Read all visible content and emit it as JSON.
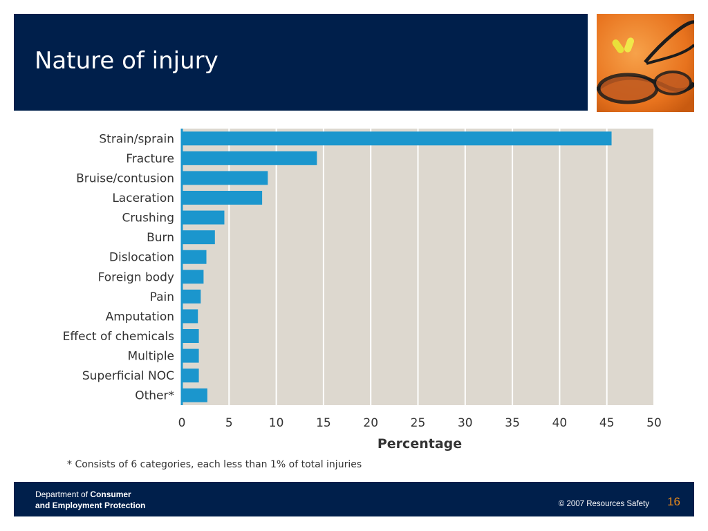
{
  "slide": {
    "title": "Nature of injury",
    "page_number": "16",
    "footnote": "* Consists of 6 categories, each less than 1% of total injuries"
  },
  "footer": {
    "dept_prefix": "Department of ",
    "dept_bold_1": "Consumer",
    "dept_line_2": "and Employment Protection",
    "copyright": "© 2007 Resources Safety"
  },
  "photo": {
    "description_icon": "safety-glasses-earplugs-photo"
  },
  "colors": {
    "header_bg": "#001f4b",
    "bar": "#1b96cd",
    "plot_bg": "#ddd8cf",
    "page_number": "#e88a1a"
  },
  "chart_data": {
    "type": "bar",
    "orientation": "horizontal",
    "categories": [
      "Strain/sprain",
      "Fracture",
      "Bruise/contusion",
      "Laceration",
      "Crushing",
      "Burn",
      "Dislocation",
      "Foreign body",
      "Pain",
      "Amputation",
      "Effect of chemicals",
      "Multiple",
      "Superficial NOC",
      "Other*"
    ],
    "values": [
      45.5,
      14.3,
      9.1,
      8.5,
      4.5,
      3.5,
      2.6,
      2.3,
      2.0,
      1.7,
      1.8,
      1.8,
      1.8,
      2.7
    ],
    "xlabel": "Percentage",
    "ylabel": "",
    "xlim": [
      0,
      50
    ],
    "xticks": [
      "0",
      "5",
      "10",
      "15",
      "20",
      "25",
      "30",
      "35",
      "40",
      "45",
      "50"
    ],
    "grid": true
  }
}
